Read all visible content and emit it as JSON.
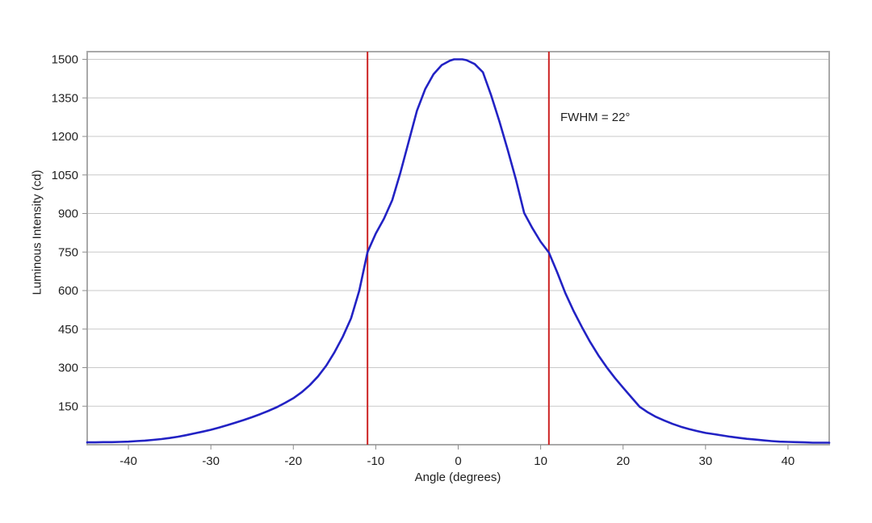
{
  "annotation": {
    "fwhm_label": "FWHM = 22°"
  },
  "chart_data": {
    "type": "line",
    "title": "",
    "xlabel": "Angle (degrees)",
    "ylabel": "Luminous Intensity (cd)",
    "xlim": [
      -45,
      45
    ],
    "ylim": [
      0,
      1530
    ],
    "x_ticks": [
      -40,
      -30,
      -20,
      -10,
      0,
      10,
      20,
      30,
      40
    ],
    "y_ticks": [
      150,
      300,
      450,
      600,
      750,
      900,
      1050,
      1200,
      1350,
      1500
    ],
    "grid": "horizontal-only",
    "legend": "none",
    "peak_value": 1500,
    "half_max_value": 750,
    "fwhm_degrees": 22,
    "marker_lines": {
      "x": [
        -11,
        11
      ],
      "color": "#cc2222",
      "label": "FWHM = 22°"
    },
    "series": [
      {
        "name": "luminous-intensity-curve",
        "color": "#2222c4",
        "points": [
          [
            -45,
            9
          ],
          [
            -44,
            9
          ],
          [
            -43,
            10
          ],
          [
            -42,
            10
          ],
          [
            -41,
            11
          ],
          [
            -40,
            12
          ],
          [
            -39,
            14
          ],
          [
            -38,
            16
          ],
          [
            -37,
            19
          ],
          [
            -36,
            22
          ],
          [
            -35,
            26
          ],
          [
            -34,
            31
          ],
          [
            -33,
            37
          ],
          [
            -32,
            44
          ],
          [
            -31,
            51
          ],
          [
            -30,
            58
          ],
          [
            -29,
            67
          ],
          [
            -28,
            76
          ],
          [
            -27,
            86
          ],
          [
            -26,
            96
          ],
          [
            -25,
            107
          ],
          [
            -24,
            119
          ],
          [
            -23,
            132
          ],
          [
            -22,
            146
          ],
          [
            -21,
            163
          ],
          [
            -20,
            181
          ],
          [
            -19,
            204
          ],
          [
            -18,
            232
          ],
          [
            -17,
            266
          ],
          [
            -16,
            308
          ],
          [
            -15,
            360
          ],
          [
            -14,
            420
          ],
          [
            -13,
            492
          ],
          [
            -12,
            600
          ],
          [
            -11,
            750
          ],
          [
            -10,
            822
          ],
          [
            -9,
            880
          ],
          [
            -8,
            952
          ],
          [
            -7,
            1060
          ],
          [
            -6,
            1180
          ],
          [
            -5,
            1300
          ],
          [
            -4,
            1385
          ],
          [
            -3,
            1442
          ],
          [
            -2,
            1478
          ],
          [
            -1,
            1495
          ],
          [
            -0.5,
            1500
          ],
          [
            0,
            1500
          ],
          [
            0.5,
            1500
          ],
          [
            1,
            1497
          ],
          [
            2,
            1482
          ],
          [
            3,
            1450
          ],
          [
            4,
            1360
          ],
          [
            5,
            1258
          ],
          [
            6,
            1148
          ],
          [
            7,
            1032
          ],
          [
            8,
            902
          ],
          [
            9,
            843
          ],
          [
            10,
            790
          ],
          [
            11,
            748
          ],
          [
            12,
            672
          ],
          [
            13,
            590
          ],
          [
            14,
            520
          ],
          [
            15,
            458
          ],
          [
            16,
            400
          ],
          [
            17,
            348
          ],
          [
            18,
            302
          ],
          [
            19,
            260
          ],
          [
            20,
            222
          ],
          [
            21,
            185
          ],
          [
            22,
            148
          ],
          [
            23,
            126
          ],
          [
            24,
            108
          ],
          [
            25,
            94
          ],
          [
            26,
            81
          ],
          [
            27,
            70
          ],
          [
            28,
            61
          ],
          [
            29,
            53
          ],
          [
            30,
            46
          ],
          [
            31,
            41
          ],
          [
            32,
            36
          ],
          [
            33,
            31
          ],
          [
            34,
            27
          ],
          [
            35,
            23
          ],
          [
            36,
            20
          ],
          [
            37,
            17
          ],
          [
            38,
            14
          ],
          [
            39,
            12
          ],
          [
            40,
            11
          ],
          [
            41,
            10
          ],
          [
            42,
            9
          ],
          [
            43,
            8
          ],
          [
            44,
            8
          ],
          [
            45,
            8
          ]
        ]
      }
    ],
    "colors": {
      "curve": "#2222c4",
      "marker_line": "#cc2222",
      "gridline": "#c9c9c9",
      "frame": "#a9a9a9",
      "tick": "#8c8c8c",
      "text": "#1f1f1f",
      "background": "#ffffff"
    }
  }
}
